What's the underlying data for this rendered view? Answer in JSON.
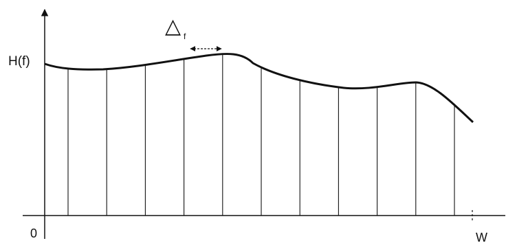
{
  "diagram": {
    "y_axis_label": "H(f)",
    "x_origin_label": "0",
    "x_end_label": "W",
    "delta_symbol": "△",
    "delta_subscript": "f",
    "sample_line_count": 11
  },
  "colors": {
    "stroke": "#111111",
    "background": "#ffffff"
  }
}
